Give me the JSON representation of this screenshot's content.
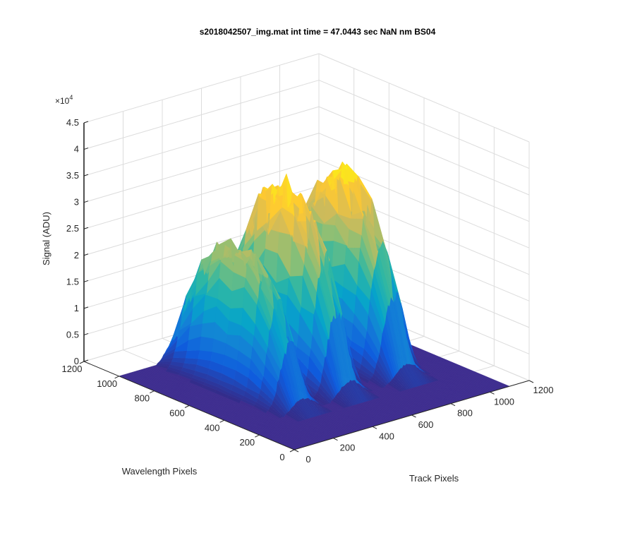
{
  "chart_data": {
    "type": "surface",
    "title": "s2018042507_img.mat int time = 47.0443 sec  NaN nm BS04",
    "xlabel": "Track Pixels",
    "ylabel": "Wavelength Pixels",
    "zlabel": "Signal (ADU)",
    "z_exponent_label": "×10",
    "z_exponent_power": "4",
    "xlim": [
      0,
      1200
    ],
    "ylim": [
      0,
      1200
    ],
    "zlim": [
      0,
      45000
    ],
    "x_ticks": [
      "0",
      "200",
      "400",
      "600",
      "800",
      "1000",
      "1200"
    ],
    "y_ticks": [
      "0",
      "200",
      "400",
      "600",
      "800",
      "1000",
      "1200"
    ],
    "z_ticks": [
      "0",
      "0.5",
      "1",
      "1.5",
      "2",
      "2.5",
      "3",
      "3.5",
      "4",
      "4.5"
    ],
    "grid": true,
    "colormap": "parula",
    "surface_extent": {
      "x": [
        0,
        1100
      ],
      "y": [
        0,
        1000
      ]
    },
    "series": [
      {
        "peak_track_center": 300,
        "track_halfwidth": 80,
        "peak_wavelength_center": 650,
        "wavelength_halfwidth": 380,
        "peak_signal": 26000
      },
      {
        "peak_track_center": 540,
        "track_halfwidth": 80,
        "peak_wavelength_center": 650,
        "wavelength_halfwidth": 380,
        "peak_signal": 34000
      },
      {
        "peak_track_center": 830,
        "track_halfwidth": 85,
        "peak_wavelength_center": 650,
        "wavelength_halfwidth": 380,
        "peak_signal": 33500
      }
    ]
  },
  "colors": {
    "axis": "#262626",
    "grid": "#dcdcdc",
    "floor": "#3e2d8f",
    "colormap_stops": [
      "#352a87",
      "#0f5cdd",
      "#1481d6",
      "#06a4ca",
      "#2eb7a4",
      "#87bf77",
      "#d1bb59",
      "#fec832",
      "#f9fb0e"
    ]
  }
}
